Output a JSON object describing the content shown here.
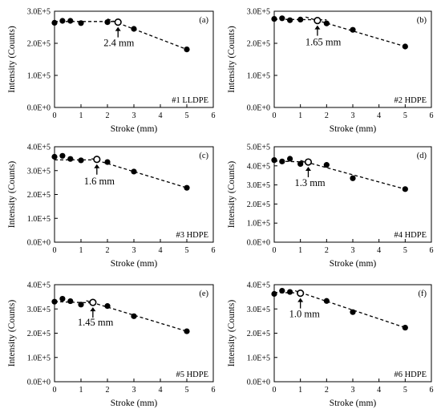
{
  "chart_data": [
    {
      "type": "scatter",
      "panel": "(a)",
      "sample": "#1 LLDPE",
      "xlabel": "Stroke (mm)",
      "ylabel": "Intensity (Counts)",
      "xlim": [
        0,
        6
      ],
      "ylim": [
        0,
        300000
      ],
      "x_ticks": [
        "0",
        "1",
        "2",
        "3",
        "4",
        "5",
        "6"
      ],
      "y_ticks": [
        "0.0E+0",
        "1.0E+5",
        "2.0E+5",
        "3.0E+5"
      ],
      "points": {
        "x": [
          0,
          0.3,
          0.6,
          1,
          2,
          3,
          5
        ],
        "y": [
          264000,
          270000,
          270000,
          263000,
          266000,
          245000,
          181000
        ]
      },
      "transition": {
        "x": 2.4,
        "y": 266000,
        "label": "2.4 mm"
      },
      "fit_lines": [
        [
          [
            0,
            268000
          ],
          [
            2.4,
            268000
          ]
        ],
        [
          [
            2.0,
            276000
          ],
          [
            5.0,
            181000
          ]
        ]
      ]
    },
    {
      "type": "scatter",
      "panel": "(b)",
      "sample": "#2 HDPE",
      "xlabel": "Stroke (mm)",
      "ylabel": "Intensity (Counts)",
      "xlim": [
        0,
        6
      ],
      "ylim": [
        0,
        300000
      ],
      "x_ticks": [
        "0",
        "1",
        "2",
        "3",
        "4",
        "5",
        "6"
      ],
      "y_ticks": [
        "0.0E+0",
        "1.0E+5",
        "2.0E+5",
        "3.0E+5"
      ],
      "points": {
        "x": [
          0,
          0.3,
          0.6,
          1,
          2,
          3,
          5
        ],
        "y": [
          276000,
          278000,
          272000,
          274000,
          262000,
          242000,
          190000
        ]
      },
      "transition": {
        "x": 1.65,
        "y": 271000,
        "label": "1.65 mm"
      },
      "fit_lines": [
        [
          [
            0,
            275000
          ],
          [
            2.0,
            273000
          ]
        ],
        [
          [
            1.2,
            282000
          ],
          [
            5.0,
            190000
          ]
        ]
      ]
    },
    {
      "type": "scatter",
      "panel": "(c)",
      "sample": "#3 HDPE",
      "xlabel": "Stroke (mm)",
      "ylabel": "Intensity (Counts)",
      "xlim": [
        0,
        6
      ],
      "ylim": [
        0,
        400000
      ],
      "x_ticks": [
        "0",
        "1",
        "2",
        "3",
        "4",
        "5",
        "6"
      ],
      "y_ticks": [
        "0.0E+0",
        "1.0E+5",
        "2.0E+5",
        "3.0E+5",
        "4.0E+5"
      ],
      "points": {
        "x": [
          0,
          0.3,
          0.6,
          1,
          2,
          3,
          5
        ],
        "y": [
          358000,
          362000,
          349000,
          343000,
          336000,
          296000,
          228000
        ]
      },
      "transition": {
        "x": 1.6,
        "y": 347000,
        "label": "1.6 mm"
      },
      "fit_lines": [
        [
          [
            0,
            345000
          ],
          [
            1.6,
            345000
          ]
        ],
        [
          [
            1.4,
            350000
          ],
          [
            5.0,
            228000
          ]
        ]
      ]
    },
    {
      "type": "scatter",
      "panel": "(d)",
      "sample": "#4 HDPE",
      "xlabel": "Stroke (mm)",
      "ylabel": "Intensity (Counts)",
      "xlim": [
        0,
        6
      ],
      "ylim": [
        0,
        500000
      ],
      "x_ticks": [
        "0",
        "1",
        "2",
        "3",
        "4",
        "5",
        "6"
      ],
      "y_ticks": [
        "0.0E+0",
        "1.0E+5",
        "2.0E+5",
        "3.0E+5",
        "4.0E+5",
        "5.0E+5"
      ],
      "points": {
        "x": [
          0,
          0.3,
          0.6,
          1,
          2,
          3,
          5
        ],
        "y": [
          430000,
          423000,
          437000,
          410000,
          405000,
          335000,
          278000
        ]
      },
      "transition": {
        "x": 1.3,
        "y": 420000,
        "label": "1.3 mm"
      },
      "fit_lines": [
        [
          [
            0,
            425000
          ],
          [
            1.3,
            420000
          ]
        ],
        [
          [
            1.0,
            428000
          ],
          [
            5.0,
            278000
          ]
        ]
      ]
    },
    {
      "type": "scatter",
      "panel": "(e)",
      "sample": "#5 HDPE",
      "xlabel": "Stroke (mm)",
      "ylabel": "Intensity (Counts)",
      "xlim": [
        0,
        6
      ],
      "ylim": [
        0,
        400000
      ],
      "x_ticks": [
        "0",
        "1",
        "2",
        "3",
        "4",
        "5",
        "6"
      ],
      "y_ticks": [
        "0.0E+0",
        "1.0E+5",
        "2.0E+5",
        "3.0E+5",
        "4.0E+5"
      ],
      "points": {
        "x": [
          0,
          0.3,
          0.6,
          1,
          2,
          3,
          5
        ],
        "y": [
          330000,
          342000,
          332000,
          318000,
          312000,
          270000,
          208000
        ]
      },
      "transition": {
        "x": 1.45,
        "y": 327000,
        "label": "1.45 mm"
      },
      "fit_lines": [
        [
          [
            0,
            330000
          ],
          [
            1.45,
            325000
          ]
        ],
        [
          [
            1.2,
            334000
          ],
          [
            5.0,
            208000
          ]
        ]
      ]
    },
    {
      "type": "scatter",
      "panel": "(f)",
      "sample": "#6 HDPE",
      "xlabel": "Stroke (mm)",
      "ylabel": "Intensity (Counts)",
      "xlim": [
        0,
        6
      ],
      "ylim": [
        0,
        400000
      ],
      "x_ticks": [
        "0",
        "1",
        "2",
        "3",
        "4",
        "5",
        "6"
      ],
      "y_ticks": [
        "0.0E+0",
        "1.0E+5",
        "2.0E+5",
        "3.0E+5",
        "4.0E+5"
      ],
      "points": {
        "x": [
          0,
          0.3,
          0.6,
          1,
          2,
          3,
          5
        ],
        "y": [
          362000,
          375000,
          370000,
          366000,
          333000,
          287000,
          223000
        ]
      },
      "transition": {
        "x": 1.0,
        "y": 365000,
        "label": "1.0 mm"
      },
      "fit_lines": [
        [
          [
            0,
            368000
          ],
          [
            1.0,
            366000
          ]
        ],
        [
          [
            0.8,
            375000
          ],
          [
            5.0,
            223000
          ]
        ]
      ]
    }
  ]
}
